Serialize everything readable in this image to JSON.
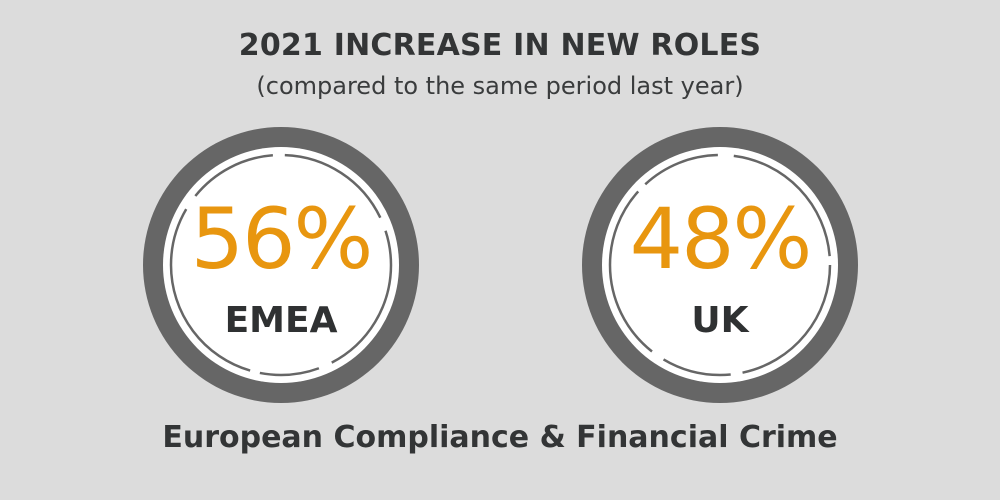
{
  "header": {
    "title": "2021 INCREASE IN NEW ROLES",
    "subtitle": "(compared to the same period last year)"
  },
  "stats": [
    {
      "value": "56%",
      "label": "EMEA"
    },
    {
      "value": "48%",
      "label": "UK"
    }
  ],
  "footer": {
    "text": "European Compliance & Financial Crime"
  },
  "colors": {
    "background": "#dcdcdc",
    "ring": "#666666",
    "accent": "#e8960f",
    "text": "#333536",
    "circle_fill": "#ffffff"
  }
}
